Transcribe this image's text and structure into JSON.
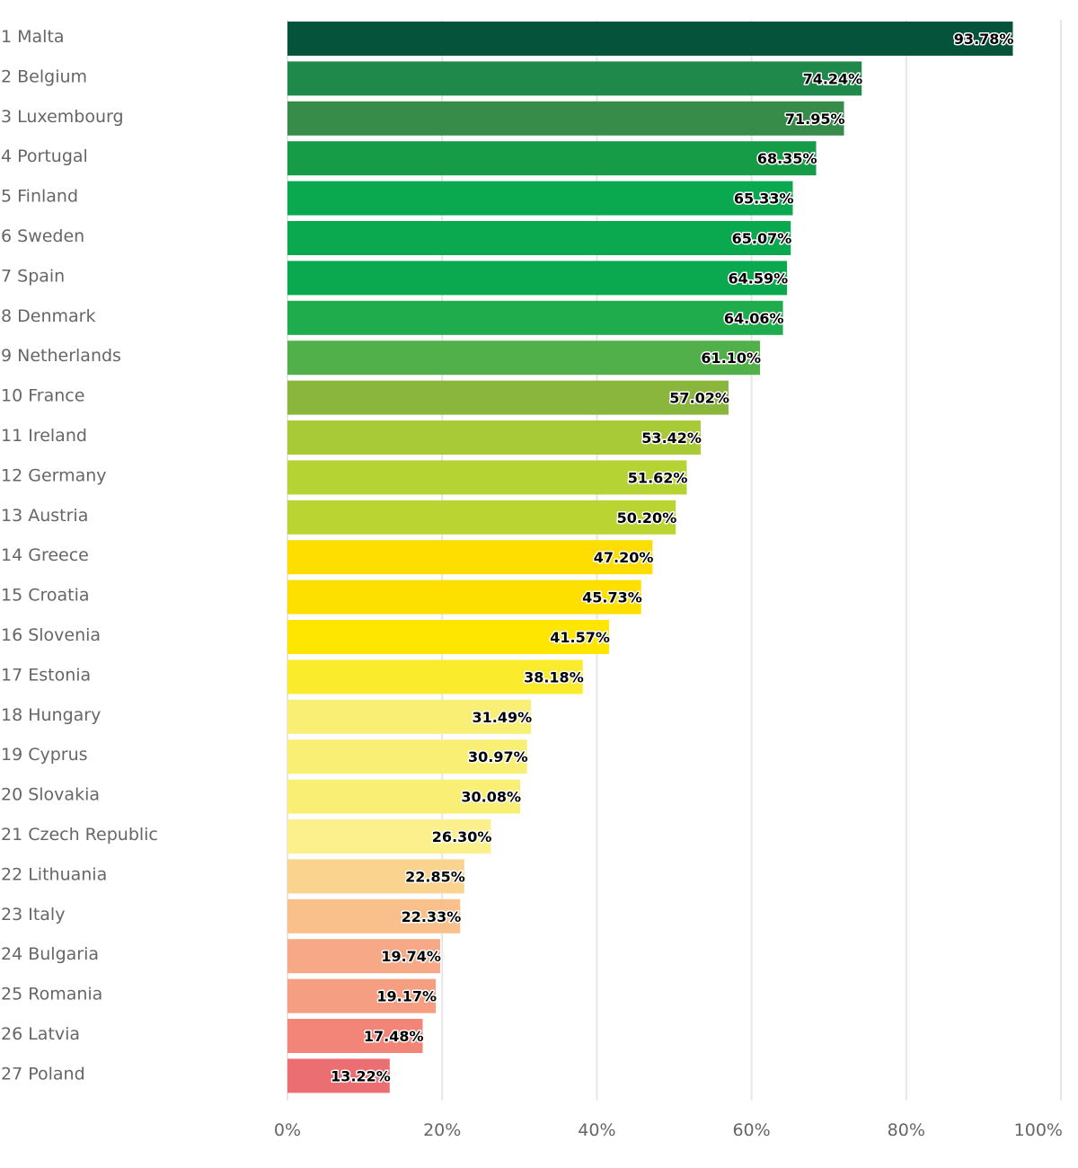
{
  "chart_data": {
    "type": "bar",
    "orientation": "horizontal",
    "title": "",
    "xlabel": "",
    "ylabel": "",
    "xlim": [
      0,
      100
    ],
    "grid": true,
    "legend": "none",
    "x_ticks": [
      "0%",
      "20%",
      "40%",
      "60%",
      "80%",
      "100%"
    ],
    "x_tick_values": [
      0,
      20,
      40,
      60,
      80,
      100
    ],
    "categories": [
      "1 Malta",
      "2 Belgium",
      "3 Luxembourg",
      "4 Portugal",
      "5 Finland",
      "6 Sweden",
      "7 Spain",
      "8 Denmark",
      "9 Netherlands",
      "10 France",
      "11 Ireland",
      "12 Germany",
      "13 Austria",
      "14 Greece",
      "15 Croatia",
      "16 Slovenia",
      "17 Estonia",
      "18 Hungary",
      "19 Cyprus",
      "20 Slovakia",
      "21 Czech Republic",
      "22 Lithuania",
      "23 Italy",
      "24 Bulgaria",
      "25 Romania",
      "26 Latvia",
      "27 Poland"
    ],
    "values": [
      93.78,
      74.24,
      71.95,
      68.35,
      65.33,
      65.07,
      64.59,
      64.06,
      61.1,
      57.02,
      53.42,
      51.62,
      50.2,
      47.2,
      45.73,
      41.57,
      38.18,
      31.49,
      30.97,
      30.08,
      26.3,
      22.85,
      22.33,
      19.74,
      19.17,
      17.48,
      13.22
    ],
    "data_labels": [
      "93.78%",
      "74.24%",
      "71.95%",
      "68.35%",
      "65.33%",
      "65.07%",
      "64.59%",
      "64.06%",
      "61.10%",
      "57.02%",
      "53.42%",
      "51.62%",
      "50.20%",
      "47.20%",
      "45.73%",
      "41.57%",
      "38.18%",
      "31.49%",
      "30.97%",
      "30.08%",
      "26.30%",
      "22.85%",
      "22.33%",
      "19.74%",
      "19.17%",
      "17.48%",
      "13.22%"
    ],
    "colors": [
      "#05533a",
      "#1f894b",
      "#388c4a",
      "#169b47",
      "#0aa84f",
      "#0aa84f",
      "#0aa84f",
      "#1eac4c",
      "#52b04a",
      "#8bb63e",
      "#a8ca37",
      "#b6d334",
      "#bad532",
      "#fedd00",
      "#fee000",
      "#ffe600",
      "#faeb2d",
      "#f9ef74",
      "#f9ef74",
      "#f9ef74",
      "#fcf08c",
      "#fad48e",
      "#f9c08b",
      "#f7a987",
      "#f59e82",
      "#f28478",
      "#eb6e72"
    ]
  }
}
